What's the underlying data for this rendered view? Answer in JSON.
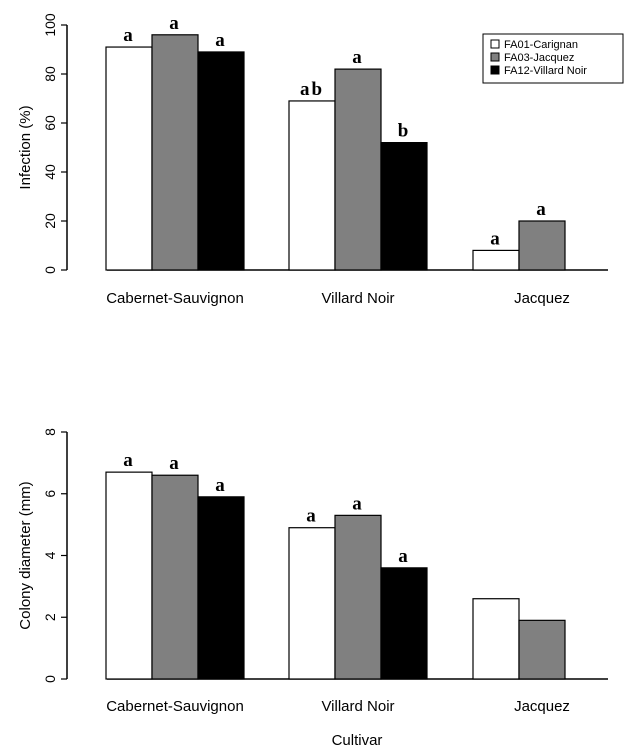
{
  "chart_data": [
    {
      "type": "bar",
      "categories": [
        "Cabernet-Sauvignon",
        "Villard Noir",
        "Jacquez"
      ],
      "series": [
        {
          "name": "FA01-Carignan",
          "values": [
            91,
            69,
            8
          ],
          "letters": [
            "a",
            "ab",
            "a"
          ],
          "color": "#ffffff"
        },
        {
          "name": "FA03-Jacquez",
          "values": [
            96,
            82,
            20
          ],
          "letters": [
            "a",
            "a",
            "a"
          ],
          "color": "#808080"
        },
        {
          "name": "FA12-Villard Noir",
          "values": [
            89,
            52,
            null
          ],
          "letters": [
            "a",
            "b",
            ""
          ],
          "color": "#000000"
        }
      ],
      "ylabel": "Infection (%)",
      "xlabel": "",
      "ylim": [
        0,
        100
      ],
      "yticks": [
        "0",
        "20",
        "40",
        "60",
        "80",
        "100"
      ],
      "legend_position": "top-right",
      "grid": false
    },
    {
      "type": "bar",
      "categories": [
        "Cabernet-Sauvignon",
        "Villard Noir",
        "Jacquez"
      ],
      "series": [
        {
          "name": "FA01-Carignan",
          "values": [
            6.7,
            4.9,
            2.6
          ],
          "letters": [
            "a",
            "a",
            ""
          ],
          "color": "#ffffff"
        },
        {
          "name": "FA03-Jacquez",
          "values": [
            6.6,
            5.3,
            1.9
          ],
          "letters": [
            "a",
            "a",
            ""
          ],
          "color": "#808080"
        },
        {
          "name": "FA12-Villard Noir",
          "values": [
            5.9,
            3.6,
            null
          ],
          "letters": [
            "a",
            "a",
            ""
          ],
          "color": "#000000"
        }
      ],
      "ylabel": "Colony diameter (mm)",
      "xlabel": "Cultivar",
      "ylim": [
        0,
        8
      ],
      "yticks": [
        "0",
        "2",
        "4",
        "6",
        "8"
      ],
      "grid": false
    }
  ]
}
